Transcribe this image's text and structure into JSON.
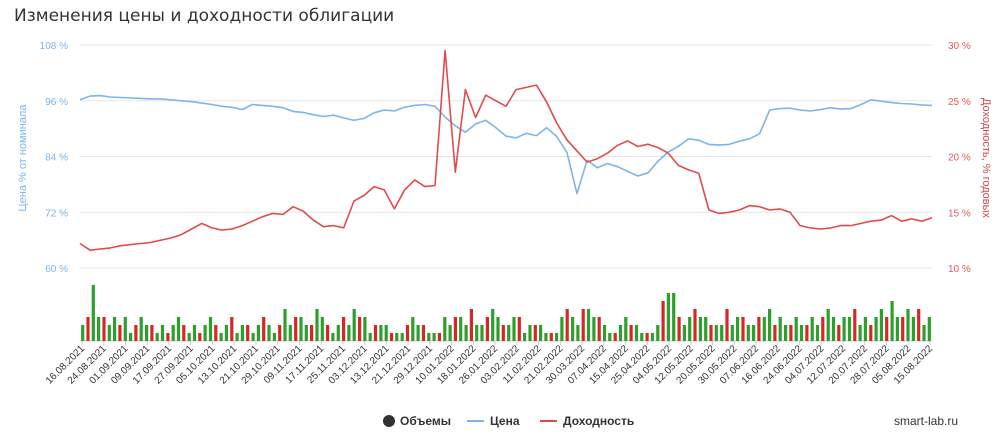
{
  "title": "Изменения цены и доходности облигации",
  "credit": "smart-lab.ru",
  "colors": {
    "price": "#7cb5ec",
    "yield": "#e04b4b",
    "vol_up": "#2ca02c",
    "vol_down": "#d62728",
    "grid": "#e6e6e6"
  },
  "chart_data": {
    "type": "line",
    "left_axis": {
      "title": "Цена % от номинала",
      "ticks": [
        "108 %",
        "96 %",
        "84 %",
        "72 %",
        "60 %"
      ],
      "range": [
        60,
        108
      ]
    },
    "right_axis": {
      "title": "Доходность, % годовых",
      "ticks": [
        "30 %",
        "25 %",
        "20 %",
        "15 %",
        "10 %"
      ],
      "range": [
        10,
        30
      ]
    },
    "x_ticks": [
      "16.08.2021",
      "24.08.2021",
      "01.09.2021",
      "09.09.2021",
      "17.09.2021",
      "27.09.2021",
      "05.10.2021",
      "13.10.2021",
      "21.10.2021",
      "29.10.2021",
      "09.11.2021",
      "17.11.2021",
      "25.11.2021",
      "03.12.2021",
      "13.12.2021",
      "21.12.2021",
      "29.12.2021",
      "10.01.2022",
      "18.01.2022",
      "26.01.2022",
      "03.02.2022",
      "11.02.2022",
      "21.02.2022",
      "30.03.2022",
      "07.04.2022",
      "15.04.2022",
      "25.04.2022",
      "04.05.2022",
      "12.05.2022",
      "20.05.2022",
      "30.05.2022",
      "07.06.2022",
      "16.06.2022",
      "24.06.2022",
      "04.07.2022",
      "12.07.2022",
      "20.07.2022",
      "28.07.2022",
      "05.08.2022",
      "15.08.2022"
    ],
    "series": [
      {
        "name": "Объемы",
        "type": "column",
        "values": [
          2,
          3,
          7,
          3,
          3,
          2,
          3,
          2,
          3,
          1,
          2,
          3,
          2,
          2,
          1,
          2,
          1,
          2,
          3,
          2,
          1,
          2,
          1,
          2,
          3,
          2,
          1,
          2,
          3,
          1,
          2,
          2,
          1,
          2,
          3,
          2,
          1,
          2,
          4,
          2,
          3,
          3,
          2,
          2,
          4,
          3,
          2,
          1,
          2,
          3,
          2,
          4,
          3,
          3,
          1,
          2,
          2,
          2,
          1,
          1,
          1,
          2,
          3,
          2,
          2,
          1,
          1,
          1,
          3,
          2,
          3,
          3,
          2,
          4,
          2,
          2,
          3,
          4,
          3,
          2,
          2,
          3,
          3,
          1,
          2,
          2,
          2,
          1,
          1,
          1,
          3,
          4,
          3,
          2,
          4,
          4,
          3,
          3,
          2,
          1,
          1,
          2,
          3,
          2,
          2,
          1,
          1,
          1,
          2,
          5,
          6,
          6,
          3,
          2,
          3,
          4,
          3,
          3,
          2,
          2,
          2,
          4,
          2,
          3,
          3,
          2,
          2,
          3,
          3,
          4,
          2,
          3,
          2,
          2,
          3,
          2,
          2,
          3,
          2,
          3,
          4,
          3,
          2,
          3,
          3,
          4,
          2,
          3,
          2,
          3,
          4,
          3,
          5,
          3,
          3,
          4,
          3,
          4,
          2,
          3
        ]
      },
      {
        "name": "Цена",
        "values": [
          96.2,
          97.0,
          97.1,
          96.8,
          96.7,
          96.6,
          96.5,
          96.4,
          96.4,
          96.2,
          96.0,
          95.8,
          95.5,
          95.2,
          94.8,
          94.6,
          94.1,
          95.2,
          95.0,
          94.8,
          94.5,
          93.7,
          93.5,
          93.0,
          92.6,
          92.9,
          92.3,
          91.8,
          92.2,
          93.4,
          94.0,
          93.8,
          94.6,
          95.0,
          95.2,
          94.8,
          92.5,
          90.6,
          89.2,
          91.0,
          91.8,
          90.2,
          88.4,
          88.0,
          89.0,
          88.5,
          90.2,
          88.3,
          84.9,
          76.0,
          83.2,
          81.6,
          82.5,
          81.8,
          80.8,
          79.8,
          80.5,
          83.0,
          85.0,
          86.2,
          87.8,
          87.5,
          86.6,
          86.5,
          86.6,
          87.3,
          87.8,
          88.9,
          94.0,
          94.3,
          94.4,
          94.0,
          93.8,
          94.1,
          94.5,
          94.2,
          94.3,
          95.2,
          96.2,
          95.9,
          95.6,
          95.4,
          95.3,
          95.1,
          95.0
        ]
      },
      {
        "name": "Доходность",
        "values": [
          12.2,
          11.6,
          11.7,
          11.8,
          12.0,
          12.1,
          12.2,
          12.3,
          12.5,
          12.7,
          13.0,
          13.5,
          14.0,
          13.6,
          13.4,
          13.5,
          13.8,
          14.2,
          14.6,
          14.9,
          14.8,
          15.5,
          15.1,
          14.3,
          13.7,
          13.8,
          13.6,
          16.0,
          16.5,
          17.3,
          17.0,
          15.3,
          17.0,
          17.9,
          17.3,
          17.4,
          29.5,
          18.6,
          26.0,
          23.5,
          25.5,
          25.0,
          24.5,
          26.0,
          26.2,
          26.4,
          24.9,
          23.0,
          21.5,
          20.5,
          19.5,
          19.8,
          20.3,
          21.0,
          21.4,
          20.9,
          21.1,
          20.8,
          20.3,
          19.2,
          18.8,
          18.5,
          15.2,
          14.9,
          15.0,
          15.2,
          15.6,
          15.5,
          15.2,
          15.3,
          15.0,
          13.8,
          13.6,
          13.5,
          13.6,
          13.8,
          13.8,
          14.0,
          14.2,
          14.3,
          14.7,
          14.2,
          14.4,
          14.2,
          14.5
        ]
      }
    ],
    "legend": {
      "placement": "bottom-center",
      "items": [
        "Объемы",
        "Цена",
        "Доходность"
      ]
    }
  }
}
